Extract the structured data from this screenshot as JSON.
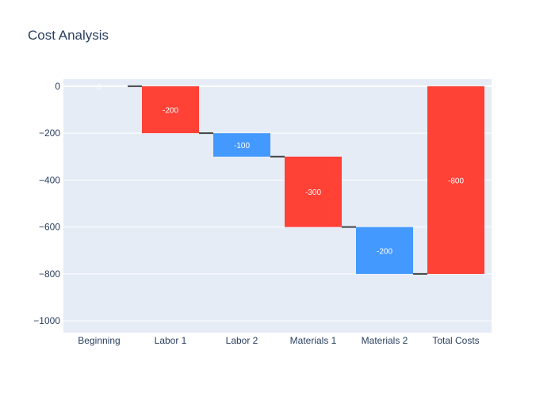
{
  "chart_data": {
    "type": "waterfall",
    "title": "Cost Analysis",
    "xlabel": "",
    "ylabel": "",
    "categories": [
      "Beginning",
      "Labor 1",
      "Labor 2",
      "Materials 1",
      "Materials 2",
      "Total Costs"
    ],
    "measures": [
      "absolute",
      "relative",
      "relative",
      "relative",
      "relative",
      "total"
    ],
    "values": [
      0,
      -200,
      -100,
      -300,
      -200,
      -800
    ],
    "text": [
      "0",
      "-200",
      "-100",
      "-300",
      "-200",
      "-800"
    ],
    "ylim": [
      -1050,
      30
    ],
    "yticks": [
      0,
      -200,
      -400,
      -600,
      -800,
      -1000
    ],
    "ytick_labels": [
      "0",
      "−200",
      "−400",
      "−600",
      "−800",
      "−1000"
    ],
    "grid": true,
    "colors": {
      "decreasing": "#ff4136",
      "subtotal": "#4499ff",
      "total": "#ff4136",
      "plot_bg": "#e5ecf6",
      "grid": "#ffffff",
      "connector": "#444444",
      "text": "#2a3f5f"
    }
  }
}
